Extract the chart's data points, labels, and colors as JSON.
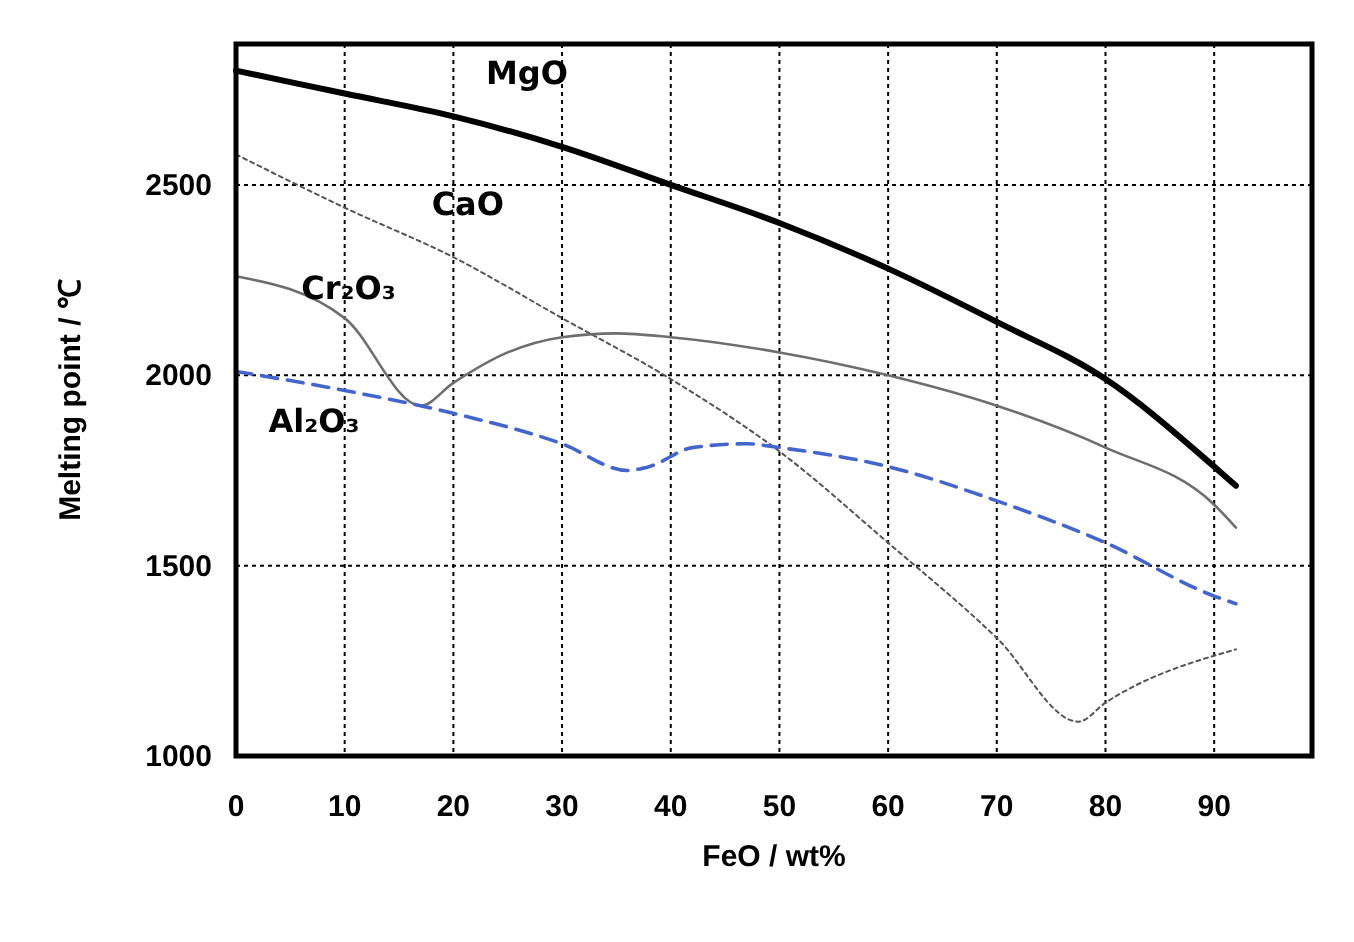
{
  "chart_data": {
    "type": "line",
    "xlabel": "FeO / wt%",
    "ylabel": "Melting point / ℃",
    "xlim": [
      0,
      99
    ],
    "ylim": [
      1000,
      2870
    ],
    "xticks": [
      0,
      10,
      20,
      30,
      40,
      50,
      60,
      70,
      80,
      90
    ],
    "yticks": [
      1000,
      1500,
      2000,
      2500
    ],
    "grid": true,
    "legend": false,
    "marker": "none",
    "series": [
      {
        "name": "MgO",
        "color": "#000000",
        "line_style": "solid",
        "x": [
          0,
          10,
          20,
          30,
          40,
          50,
          60,
          70,
          80,
          90,
          92
        ],
        "values": [
          2800,
          2740,
          2680,
          2600,
          2500,
          2400,
          2280,
          2140,
          1990,
          1760,
          1710
        ]
      },
      {
        "name": "CaO",
        "color": "#555555",
        "line_style": "dotted",
        "x": [
          0,
          10,
          20,
          30,
          40,
          50,
          60,
          70,
          77.5,
          80,
          92
        ],
        "values": [
          2580,
          2440,
          2310,
          2150,
          1990,
          1800,
          1560,
          1310,
          1090,
          1140,
          1280
        ]
      },
      {
        "name": "Cr₂O₃",
        "color": "#6e6e6e",
        "line_style": "solid",
        "x": [
          0,
          10,
          17,
          20,
          25,
          30,
          35,
          40,
          50,
          60,
          70,
          80,
          90,
          92
        ],
        "values": [
          2260,
          2150,
          1920,
          1980,
          2060,
          2100,
          2110,
          2100,
          2060,
          2000,
          1920,
          1810,
          1660,
          1600
        ]
      },
      {
        "name": "Al₂O₃",
        "color": "#4466cc",
        "line_style": "dashed",
        "x": [
          0,
          10,
          20,
          30,
          36,
          38,
          42,
          47,
          50,
          60,
          70,
          80,
          90,
          92
        ],
        "values": [
          2010,
          1960,
          1900,
          1820,
          1750,
          1760,
          1810,
          1820,
          1810,
          1760,
          1670,
          1560,
          1420,
          1400
        ]
      }
    ]
  }
}
